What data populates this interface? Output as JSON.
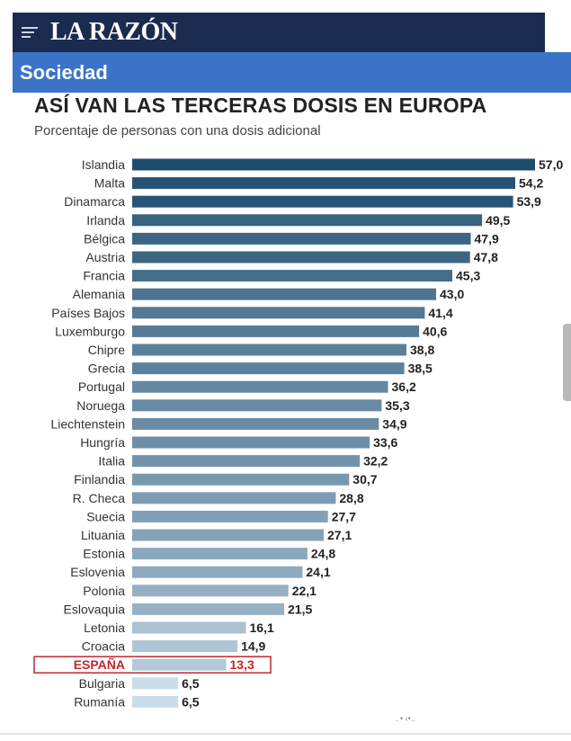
{
  "header": {
    "brand": "LA RAZÓN",
    "menu_icon": "menu-icon"
  },
  "section": {
    "label": "Sociedad"
  },
  "chart_data": {
    "type": "bar",
    "orientation": "horizontal",
    "title": "ASÍ VAN LAS TERCERAS DOSIS EN EUROPA",
    "subtitle": "Porcentaje de personas con una dosis adicional",
    "xlabel": "",
    "ylabel": "",
    "xlim": [
      0,
      57.0
    ],
    "grid": false,
    "categories": [
      "Islandia",
      "Malta",
      "Dinamarca",
      "Irlanda",
      "Bélgica",
      "Austria",
      "Francia",
      "Alemania",
      "Países Bajos",
      "Luxemburgo",
      "Chipre",
      "Grecia",
      "Portugal",
      "Noruega",
      "Liechtenstein",
      "Hungría",
      "Italia",
      "Finlandia",
      "R. Checa",
      "Suecia",
      "Lituania",
      "Estonia",
      "Eslovenia",
      "Polonia",
      "Eslovaquia",
      "Letonia",
      "Croacia",
      "ESPAÑA",
      "Bulgaria",
      "Rumanía"
    ],
    "values": [
      57.0,
      54.2,
      53.9,
      49.5,
      47.9,
      47.8,
      45.3,
      43.0,
      41.4,
      40.6,
      38.8,
      38.5,
      36.2,
      35.3,
      34.9,
      33.6,
      32.2,
      30.7,
      28.8,
      27.7,
      27.1,
      24.8,
      24.1,
      22.1,
      21.5,
      16.1,
      14.9,
      13.3,
      6.5,
      6.5
    ],
    "value_labels": [
      "57,0",
      "54,2",
      "53,9",
      "49,5",
      "47,9",
      "47,8",
      "45,3",
      "43,0",
      "41,4",
      "40,6",
      "38,8",
      "38,5",
      "36,2",
      "35,3",
      "34,9",
      "33,6",
      "32,2",
      "30,7",
      "28,8",
      "27,7",
      "27,1",
      "24,8",
      "24,1",
      "22,1",
      "21,5",
      "16,1",
      "14,9",
      "13,3",
      "6,5",
      "6,5"
    ],
    "highlight": "ESPAÑA",
    "colors": {
      "high": "#1d4c6e",
      "low": "#cbdde9",
      "highlight_text": "#c0272d",
      "highlight_box": "#c0272d"
    }
  }
}
